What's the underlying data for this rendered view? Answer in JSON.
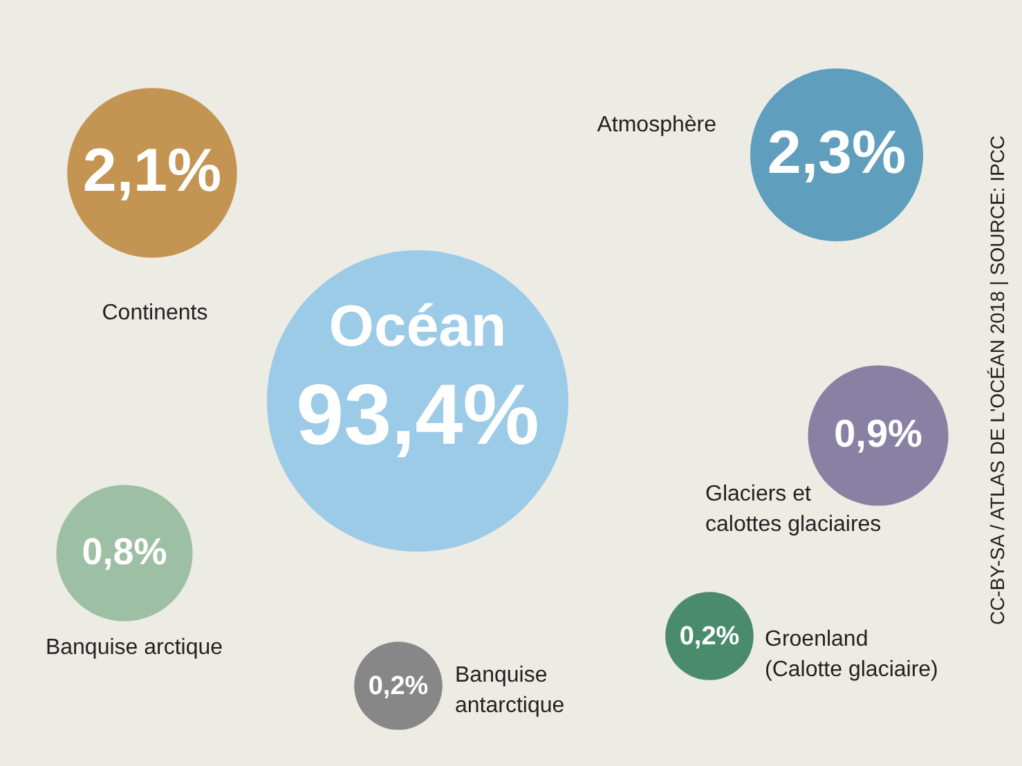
{
  "chart_data": {
    "type": "other",
    "categories": [
      "Océan",
      "Continents",
      "Atmosphère",
      "Glaciers et\ncalottes glaciaires",
      "Banquise arctique",
      "Banquise\nantarctique",
      "Groenland\n(Calotte glaciaire)"
    ],
    "values": [
      93.4,
      2.1,
      2.3,
      0.9,
      0.8,
      0.2,
      0.2
    ],
    "value_labels": [
      "93,4%",
      "2,1%",
      "2,3%",
      "0,9%",
      "0,8%",
      "0,2%",
      "0,2%"
    ],
    "colors": [
      "#9ccbe8",
      "#c49552",
      "#5f9ebc",
      "#8981a3",
      "#9dbfa3",
      "#878787",
      "#4a8a6d"
    ],
    "annotations": [
      "CC-BY-SA / ATLAS DE L'OCÉAN 2018 | SOURCE: IPCC"
    ]
  }
}
